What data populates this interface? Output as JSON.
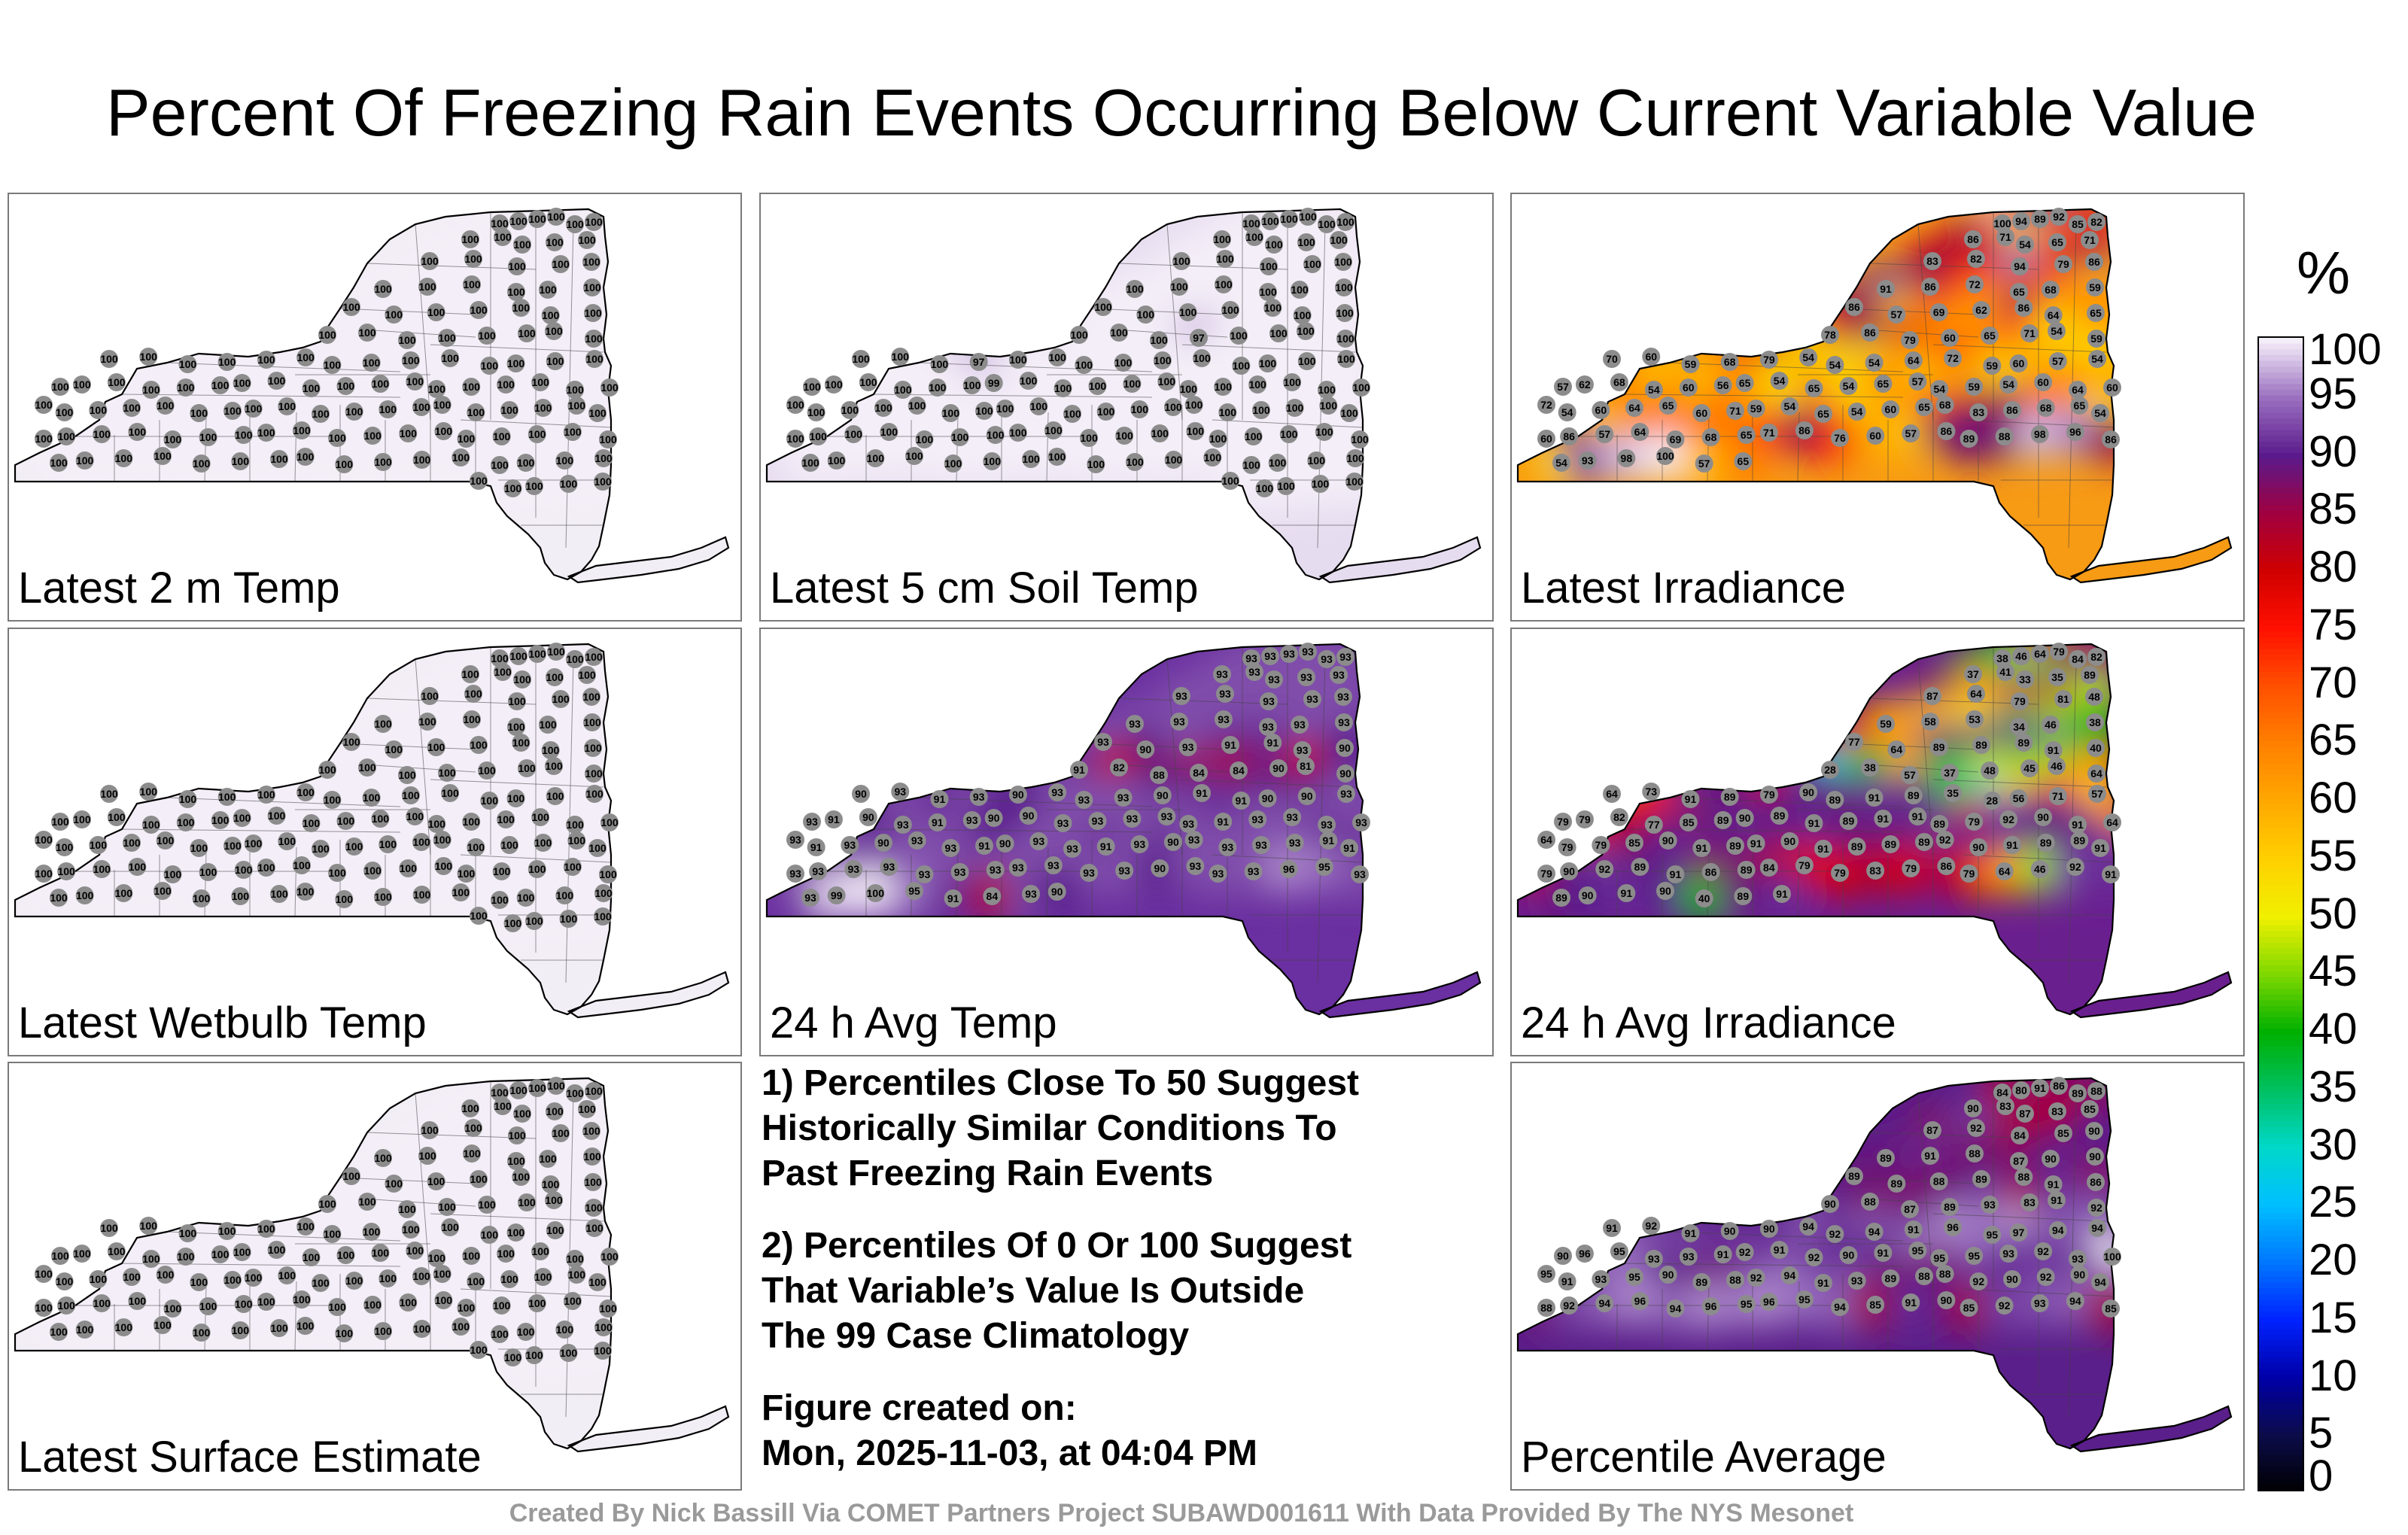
{
  "title": "Percent Of Freezing Rain Events Occurring Below Current Variable Value",
  "panels": [
    {
      "label": "Latest 2 m Temp",
      "fill": "#f2eef5",
      "values": [
        100,
        100,
        100,
        100,
        100,
        100,
        100,
        100,
        100,
        100,
        100,
        100,
        100,
        100,
        100,
        100,
        100,
        100,
        100,
        100,
        100,
        100,
        100,
        100,
        100,
        100,
        100,
        100,
        100,
        100,
        100,
        100,
        100,
        100,
        100,
        100,
        100,
        100,
        100,
        100,
        100,
        100,
        100,
        100,
        100,
        100,
        100,
        100,
        100,
        100,
        100,
        100,
        100,
        100,
        100,
        100,
        100,
        100,
        100,
        100,
        100,
        100,
        100,
        100,
        100,
        100,
        100,
        100,
        100,
        100,
        100,
        100,
        100,
        100,
        100,
        100,
        100,
        100,
        100,
        100,
        100,
        100,
        100,
        100,
        100,
        100,
        100,
        100,
        100,
        100,
        100,
        100,
        100,
        100,
        100,
        100,
        100,
        100,
        100,
        100,
        100,
        100,
        100,
        100,
        100,
        100,
        100,
        100,
        100,
        100,
        100,
        100,
        100,
        100,
        100,
        100,
        100,
        100,
        100,
        100,
        100,
        100,
        100,
        100,
        100,
        100,
        100
      ]
    },
    {
      "label": "Latest 5 cm Soil Temp",
      "fill": "#e6dcef",
      "values": [
        100,
        100,
        100,
        100,
        100,
        100,
        100,
        100,
        100,
        100,
        100,
        100,
        100,
        100,
        100,
        100,
        100,
        100,
        100,
        100,
        100,
        100,
        100,
        100,
        100,
        100,
        100,
        100,
        100,
        100,
        100,
        100,
        97,
        100,
        100,
        100,
        100,
        100,
        100,
        100,
        97,
        100,
        100,
        100,
        100,
        100,
        100,
        100,
        100,
        100,
        100,
        100,
        100,
        100,
        100,
        100,
        100,
        99,
        100,
        100,
        100,
        100,
        100,
        100,
        100,
        100,
        100,
        100,
        100,
        100,
        100,
        100,
        100,
        100,
        100,
        100,
        100,
        100,
        100,
        100,
        100,
        100,
        100,
        100,
        100,
        100,
        100,
        100,
        100,
        100,
        100,
        100,
        100,
        100,
        100,
        100,
        100,
        100,
        100,
        100,
        100,
        100,
        100,
        100,
        100,
        100,
        100,
        100,
        100,
        100,
        100,
        100,
        100,
        100,
        100,
        100,
        100,
        100,
        100,
        100,
        100,
        100,
        100,
        100,
        100,
        100,
        100
      ]
    },
    {
      "label": "Latest Irradiance",
      "fill": "#f79a14",
      "values": [
        100,
        94,
        89,
        92,
        85,
        82,
        86,
        71,
        54,
        65,
        71,
        83,
        82,
        94,
        79,
        86,
        91,
        86,
        72,
        65,
        68,
        59,
        86,
        57,
        69,
        62,
        86,
        64,
        65,
        78,
        86,
        79,
        60,
        65,
        71,
        54,
        59,
        70,
        60,
        59,
        68,
        79,
        54,
        54,
        54,
        64,
        72,
        59,
        60,
        57,
        54,
        57,
        62,
        68,
        54,
        60,
        56,
        65,
        54,
        65,
        54,
        65,
        57,
        54,
        59,
        54,
        60,
        64,
        60,
        72,
        54,
        60,
        64,
        65,
        60,
        71,
        59,
        54,
        65,
        54,
        60,
        65,
        68,
        83,
        86,
        68,
        65,
        54,
        60,
        86,
        57,
        64,
        69,
        68,
        65,
        71,
        86,
        76,
        60,
        57,
        86,
        89,
        88,
        98,
        96,
        86,
        54,
        93,
        98,
        100,
        57,
        65
      ]
    },
    {
      "label": "Latest Wetbulb Temp",
      "fill": "#f2eef5",
      "values": [
        100,
        100,
        100,
        100,
        100,
        100,
        100,
        100,
        100,
        100,
        100,
        100,
        100,
        100,
        100,
        100,
        100,
        100,
        100,
        100,
        100,
        100,
        100,
        100,
        100,
        100,
        100,
        100,
        100,
        100,
        100,
        100,
        100,
        100,
        100,
        100,
        100,
        100,
        100,
        100,
        100,
        100,
        100,
        100,
        100,
        100,
        100,
        100,
        100,
        100,
        100,
        100,
        100,
        100,
        100,
        100,
        100,
        100,
        100,
        100,
        100,
        100,
        100,
        100,
        100,
        100,
        100,
        100,
        100,
        100,
        100,
        100,
        100,
        100,
        100,
        100,
        100,
        100,
        100,
        100,
        100,
        100,
        100,
        100,
        100,
        100,
        100,
        100,
        100,
        100,
        100,
        100,
        100,
        100,
        100,
        100,
        100,
        100,
        100,
        100,
        100,
        100,
        100,
        100,
        100,
        100,
        100,
        100,
        100,
        100,
        100,
        100,
        100,
        100,
        100,
        100,
        100,
        100,
        100,
        100,
        100,
        100,
        100,
        100,
        100,
        100,
        100
      ]
    },
    {
      "label": "24 h Avg Temp",
      "fill": "#6a2fa0",
      "values": [
        93,
        93,
        93,
        93,
        93,
        93,
        93,
        93,
        93,
        93,
        93,
        93,
        93,
        93,
        93,
        93,
        93,
        93,
        93,
        93,
        93,
        93,
        93,
        90,
        93,
        91,
        91,
        93,
        90,
        91,
        82,
        88,
        84,
        84,
        90,
        81,
        90,
        90,
        93,
        91,
        93,
        90,
        93,
        93,
        93,
        90,
        91,
        91,
        90,
        90,
        93,
        93,
        91,
        90,
        93,
        91,
        93,
        90,
        90,
        93,
        93,
        93,
        93,
        93,
        91,
        93,
        93,
        93,
        93,
        93,
        91,
        93,
        90,
        93,
        93,
        91,
        90,
        93,
        93,
        91,
        93,
        90,
        93,
        93,
        93,
        93,
        91,
        91,
        93,
        93,
        93,
        93,
        93,
        93,
        93,
        93,
        93,
        93,
        93,
        90,
        93,
        93,
        93,
        96,
        95,
        93,
        93,
        99,
        100,
        95,
        91,
        84,
        93,
        90
      ]
    },
    {
      "label": "24 h Avg Irradiance",
      "fill": "#6a1f8f",
      "values": [
        38,
        46,
        64,
        79,
        84,
        82,
        37,
        41,
        33,
        35,
        89,
        87,
        64,
        79,
        81,
        48,
        59,
        58,
        53,
        34,
        46,
        38,
        77,
        64,
        89,
        89,
        89,
        91,
        40,
        28,
        38,
        57,
        37,
        48,
        45,
        46,
        64,
        64,
        73,
        91,
        89,
        79,
        90,
        89,
        91,
        89,
        35,
        28,
        56,
        71,
        57,
        79,
        79,
        82,
        77,
        85,
        89,
        90,
        89,
        91,
        89,
        91,
        91,
        89,
        79,
        92,
        90,
        91,
        64,
        64,
        79,
        79,
        85,
        90,
        91,
        89,
        91,
        90,
        91,
        89,
        89,
        89,
        92,
        90,
        91,
        89,
        89,
        91,
        79,
        90,
        92,
        89,
        91,
        86,
        89,
        84,
        79,
        79,
        83,
        79,
        86,
        79,
        64,
        46,
        92,
        91,
        89,
        90,
        91,
        90,
        40,
        89,
        91
      ]
    },
    {
      "label": "Latest Surface Estimate",
      "fill": "#f2eef5",
      "values": [
        100,
        100,
        100,
        100,
        100,
        100,
        100,
        100,
        100,
        100,
        100,
        100,
        100,
        100,
        100,
        100,
        100,
        100,
        100,
        100,
        100,
        100,
        100,
        100,
        100,
        100,
        100,
        100,
        100,
        100,
        100,
        100,
        100,
        100,
        100,
        100,
        100,
        100,
        100,
        100,
        100,
        100,
        100,
        100,
        100,
        100,
        100,
        100,
        100,
        100,
        100,
        100,
        100,
        100,
        100,
        100,
        100,
        100,
        100,
        100,
        100,
        100,
        100,
        100,
        100,
        100,
        100,
        100,
        100,
        100,
        100,
        100,
        100,
        100,
        100,
        100,
        100,
        100,
        100,
        100,
        100,
        100,
        100,
        100,
        100,
        100,
        100,
        100,
        100,
        100,
        100,
        100,
        100,
        100,
        100,
        100,
        100,
        100,
        100,
        100,
        100,
        100,
        100,
        100,
        100,
        100,
        100,
        100,
        100,
        100,
        100,
        100,
        100,
        100,
        100,
        100,
        100,
        100,
        100,
        100,
        100,
        100,
        100,
        100,
        100,
        100,
        100
      ]
    },
    {
      "label": "Percentile Average",
      "fill": "#5a1f8a",
      "values": [
        84,
        80,
        91,
        86,
        89,
        88,
        90,
        83,
        87,
        83,
        85,
        87,
        92,
        84,
        85,
        90,
        89,
        91,
        88,
        87,
        90,
        90,
        89,
        89,
        88,
        89,
        88,
        91,
        86,
        90,
        88,
        87,
        89,
        93,
        83,
        91,
        92,
        91,
        92,
        91,
        90,
        90,
        94,
        92,
        94,
        91,
        96,
        95,
        97,
        94,
        94,
        90,
        96,
        95,
        93,
        93,
        91,
        92,
        91,
        92,
        90,
        91,
        95,
        95,
        95,
        93,
        92,
        93,
        100,
        95,
        91,
        93,
        95,
        90,
        89,
        88,
        92,
        94,
        91,
        93,
        89,
        88,
        88,
        92,
        90,
        92,
        90,
        94,
        88,
        92,
        94,
        96,
        94,
        96,
        95,
        96,
        95,
        94,
        85,
        91,
        90,
        85,
        92,
        93,
        94,
        85
      ]
    }
  ],
  "notes": {
    "note1": "1) Percentiles Close To 50 Suggest\nHistorically Similar Conditions To\nPast Freezing Rain Events",
    "note2": "2) Percentiles Of 0 Or 100 Suggest\nThat Variable’s Value Is Outside\nThe 99 Case Climatology",
    "created": "Figure created on:\nMon, 2025-11-03, at 04:04 PM"
  },
  "credit": "Created By Nick Bassill Via COMET Partners Project SUBAWD001611 With Data Provided By The NYS Mesonet",
  "chart_data": {
    "type": "heatmap",
    "title": "Percent Of Freezing Rain Events Occurring Below Current Variable Value",
    "colorbar": {
      "unit": "%",
      "range": [
        0,
        100
      ],
      "ticks": [
        "0",
        "5",
        "10",
        "15",
        "20",
        "25",
        "30",
        "35",
        "40",
        "45",
        "50",
        "55",
        "60",
        "65",
        "70",
        "75",
        "80",
        "85",
        "90",
        "95",
        "100"
      ],
      "stops": [
        {
          "v": 0,
          "c": "#000000"
        },
        {
          "v": 5,
          "c": "#0b0b4a"
        },
        {
          "v": 10,
          "c": "#0000a8"
        },
        {
          "v": 15,
          "c": "#0022ff"
        },
        {
          "v": 20,
          "c": "#0077ff"
        },
        {
          "v": 25,
          "c": "#00bfff"
        },
        {
          "v": 30,
          "c": "#00d8c8"
        },
        {
          "v": 35,
          "c": "#00c060"
        },
        {
          "v": 40,
          "c": "#00b000"
        },
        {
          "v": 45,
          "c": "#7fd800"
        },
        {
          "v": 50,
          "c": "#f0f000"
        },
        {
          "v": 55,
          "c": "#ffd000"
        },
        {
          "v": 60,
          "c": "#ffa800"
        },
        {
          "v": 65,
          "c": "#ff8000"
        },
        {
          "v": 70,
          "c": "#ff5000"
        },
        {
          "v": 75,
          "c": "#ff1000"
        },
        {
          "v": 80,
          "c": "#d00000"
        },
        {
          "v": 85,
          "c": "#a00040"
        },
        {
          "v": 90,
          "c": "#5a1a8c"
        },
        {
          "v": 95,
          "c": "#9a6fc0"
        },
        {
          "v": 100,
          "c": "#f4eef8"
        }
      ]
    },
    "panels": [
      "Latest 2 m Temp",
      "Latest 5 cm Soil Temp",
      "Latest Irradiance",
      "Latest Wetbulb Temp",
      "24 h Avg Temp",
      "24 h Avg Irradiance",
      "Latest Surface Estimate",
      "Percentile Average"
    ]
  }
}
